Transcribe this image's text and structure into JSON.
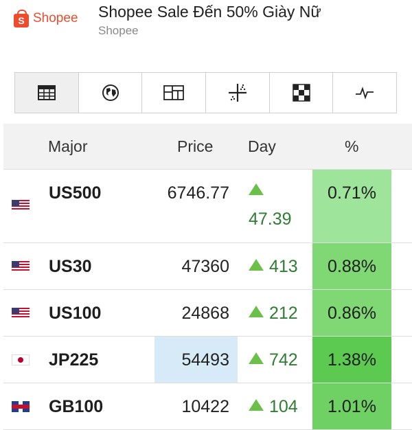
{
  "ad": {
    "brand": "Shopee",
    "logo_letter": "S",
    "title": "Shopee Sale Đến 50% Giày Nữ",
    "subtitle": "Shopee"
  },
  "tabs": [
    {
      "icon": "table-icon",
      "active": true
    },
    {
      "icon": "globe-icon",
      "active": false
    },
    {
      "icon": "grid-layout-icon",
      "active": false
    },
    {
      "icon": "crosshair-icon",
      "active": false
    },
    {
      "icon": "heatmap-icon",
      "active": false
    },
    {
      "icon": "pulse-icon",
      "active": false
    }
  ],
  "table": {
    "headers": {
      "major": "Major",
      "price": "Price",
      "day": "Day",
      "pct": "%"
    },
    "rows": [
      {
        "flag": "us",
        "name": "US500",
        "price": "6746.77",
        "change": "47.39",
        "pct": "0.71%",
        "pct_color": "#9ee49a",
        "price_highlight": false
      },
      {
        "flag": "us",
        "name": "US30",
        "price": "47360",
        "change": "413",
        "pct": "0.88%",
        "pct_color": "#7fd873",
        "price_highlight": false
      },
      {
        "flag": "us",
        "name": "US100",
        "price": "24868",
        "change": "212",
        "pct": "0.86%",
        "pct_color": "#7fd873",
        "price_highlight": false
      },
      {
        "flag": "jp",
        "name": "JP225",
        "price": "54493",
        "change": "742",
        "pct": "1.38%",
        "pct_color": "#5cca50",
        "price_highlight": true
      },
      {
        "flag": "gb",
        "name": "GB100",
        "price": "10422",
        "change": "104",
        "pct": "1.01%",
        "pct_color": "#6fd064",
        "price_highlight": false
      }
    ]
  },
  "colors": {
    "brand": "#ee4d2d",
    "up_arrow": "#6cc04a",
    "up_text": "#2e7d32",
    "price_highlight": "#d6ebf7"
  }
}
